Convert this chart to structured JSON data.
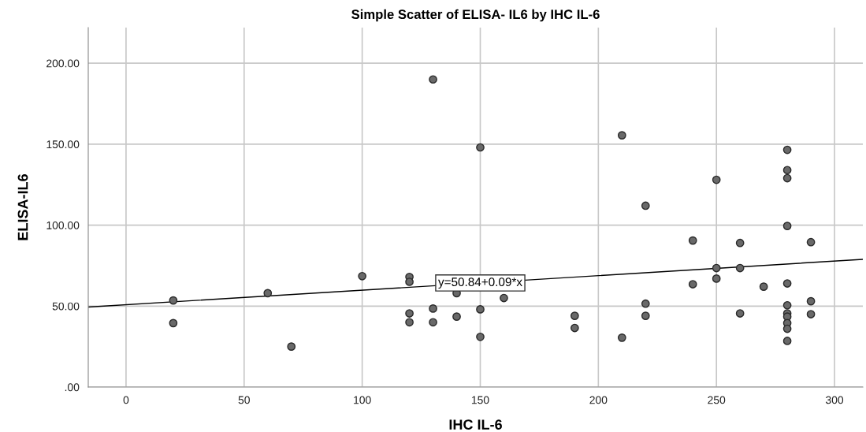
{
  "chart_data": {
    "type": "scatter",
    "title": "Simple Scatter of ELISA- IL6 by IHC IL-6",
    "xlabel": "IHC IL-6",
    "ylabel": "ELISA-IL6",
    "xlim": [
      -16,
      312
    ],
    "xticks": [
      0,
      50,
      100,
      150,
      200,
      250,
      300
    ],
    "ylim": [
      0,
      222
    ],
    "yticks": [
      {
        "value": 0,
        "label": ".00"
      },
      {
        "value": 50,
        "label": "50.00"
      },
      {
        "value": 100,
        "label": "100.00"
      },
      {
        "value": 150,
        "label": "150.00"
      },
      {
        "value": 200,
        "label": "200.00"
      }
    ],
    "grid": true,
    "series": [
      {
        "marker": "circle",
        "color": "#696969",
        "x": [
          20,
          20,
          60,
          70,
          100,
          120,
          120,
          120,
          120,
          130,
          130,
          130,
          140,
          140,
          150,
          150,
          150,
          160,
          190,
          190,
          210,
          210,
          220,
          220,
          220,
          240,
          240,
          250,
          250,
          250,
          260,
          260,
          260,
          270,
          280,
          280,
          280,
          280,
          280,
          280,
          280,
          280,
          280,
          280,
          280,
          290,
          290,
          290
        ],
        "values": [
          53.5,
          39.5,
          58,
          25,
          68.5,
          68,
          65,
          45.5,
          40,
          190,
          48.5,
          40,
          58,
          43.5,
          148,
          48,
          31,
          55,
          44,
          36.5,
          155.5,
          30.5,
          112,
          51.5,
          44,
          90.5,
          63.5,
          128,
          73.5,
          67,
          89,
          73.5,
          45.5,
          62,
          146.5,
          134,
          129,
          99.5,
          64,
          50.5,
          45.5,
          43.5,
          39.5,
          36,
          28.5,
          89.5,
          53,
          45
        ]
      },
      {
        "type": "line",
        "marker": "none",
        "color": "#000000",
        "line_style": "solid",
        "x": [
          -16,
          312
        ],
        "values": [
          49.4,
          78.9
        ]
      }
    ],
    "annotations": [
      {
        "text": "y=50.84+0.09*x",
        "x": 150,
        "y": 64.3
      }
    ]
  }
}
